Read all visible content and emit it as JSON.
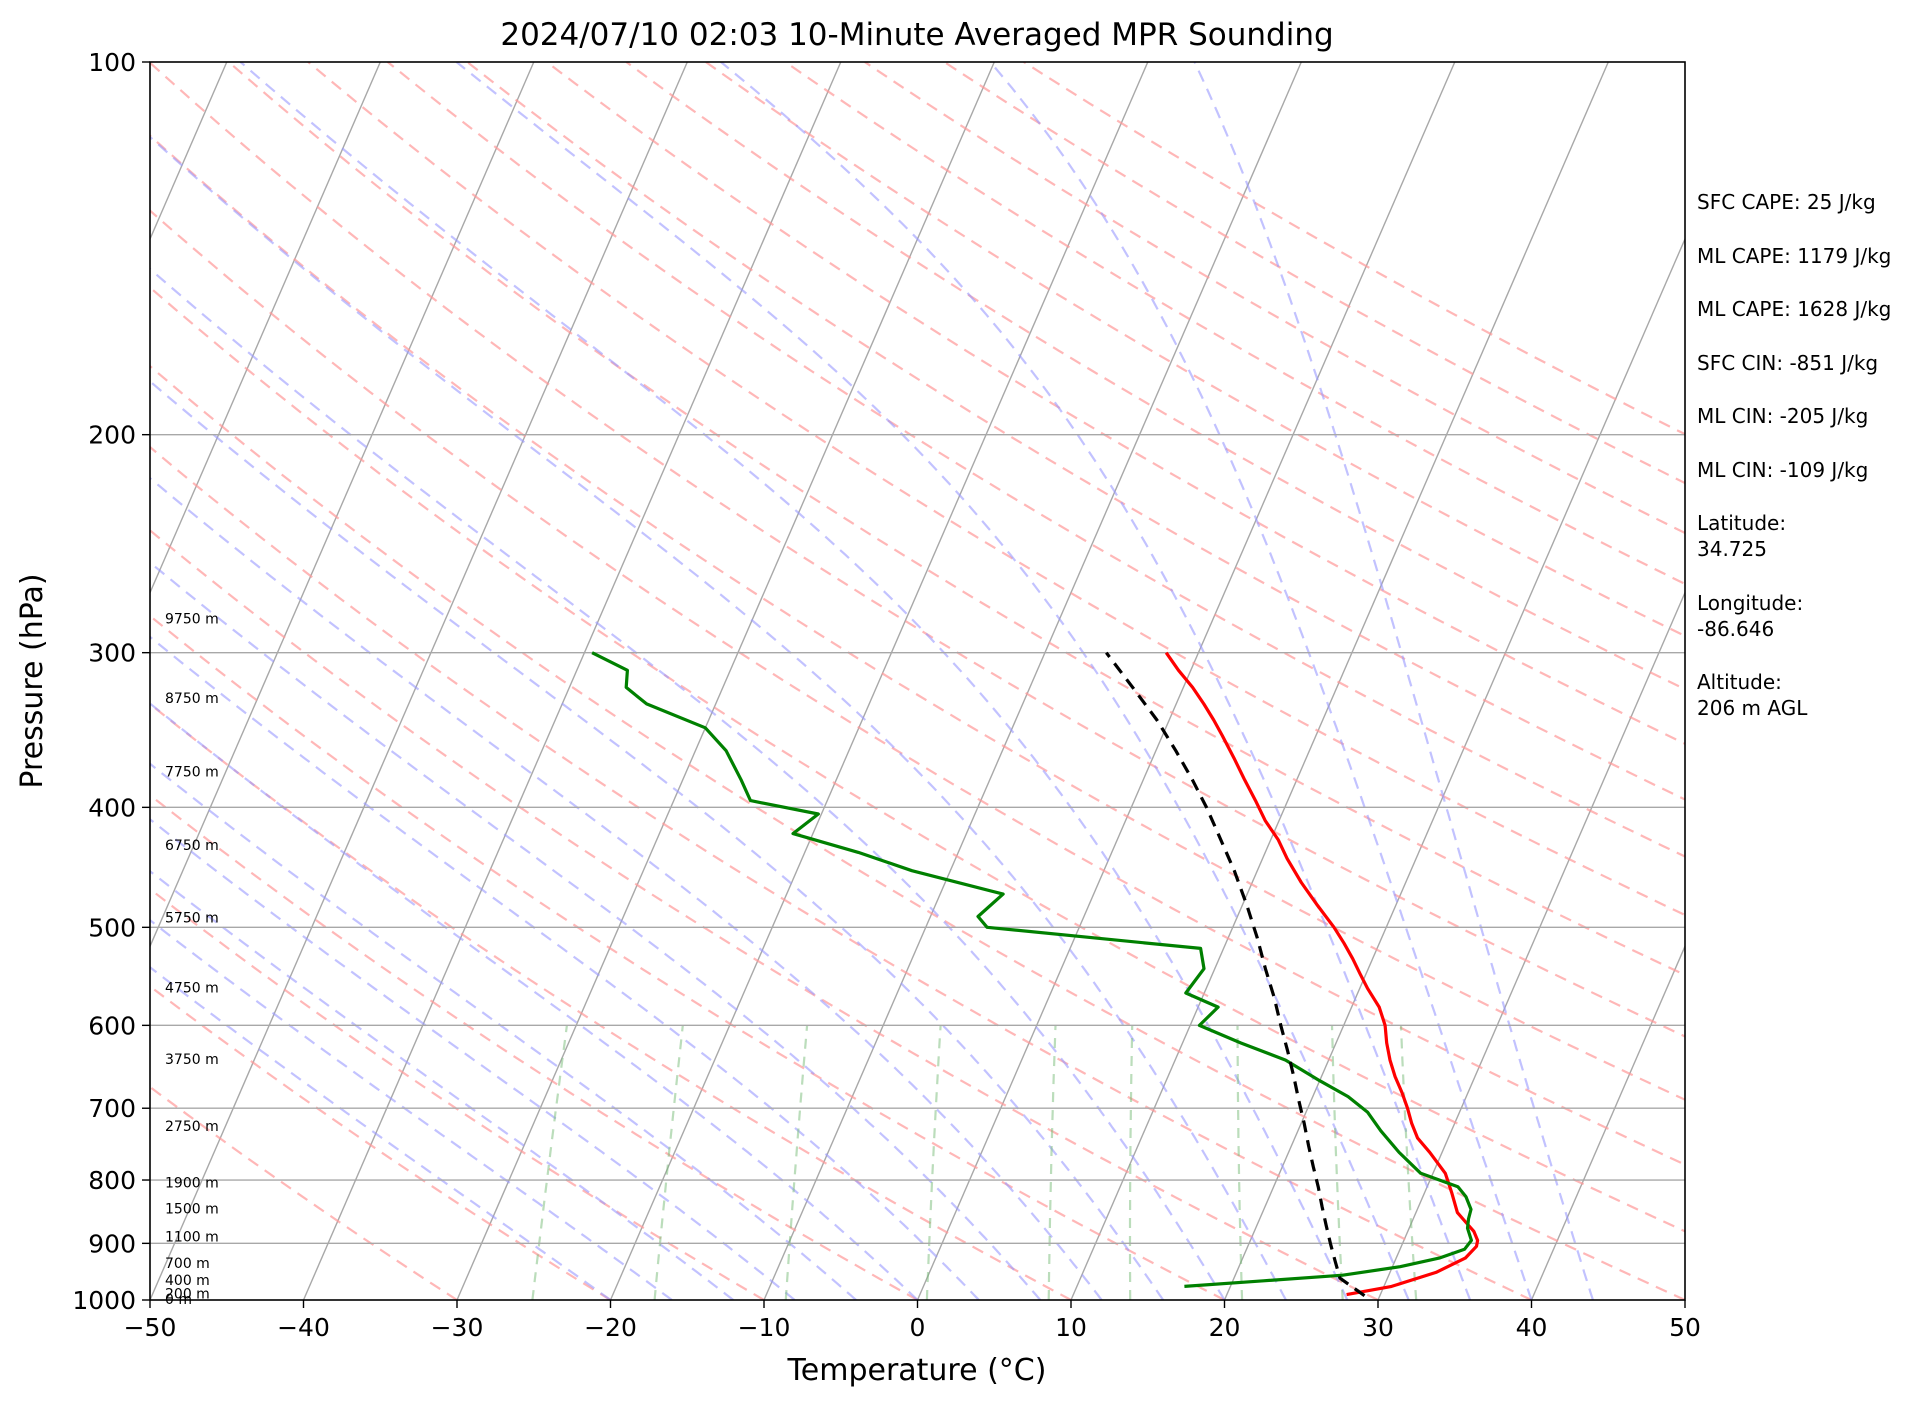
{
  "chart_data": {
    "type": "line",
    "subtype": "skew-t log-p",
    "title": "2024/07/10 02:03 10-Minute Averaged MPR Sounding",
    "xlabel": "Temperature (°C)",
    "ylabel": "Pressure (hPa)",
    "xlim": [
      -50,
      50
    ],
    "ylim": [
      1000,
      100
    ],
    "y_scale": "log",
    "x_ticks": [
      "−50",
      "−40",
      "−30",
      "−20",
      "−10",
      "0",
      "10",
      "20",
      "30",
      "40",
      "50"
    ],
    "y_ticks": [
      "100",
      "200",
      "300",
      "400",
      "500",
      "600",
      "700",
      "800",
      "900",
      "1000"
    ],
    "grid": "horizontal isobars at labeled pressures",
    "height_labels": [
      {
        "p": 1000,
        "text": "0 m"
      },
      {
        "p": 990,
        "text": "200 m"
      },
      {
        "p": 965,
        "text": "400 m"
      },
      {
        "p": 935,
        "text": "700 m"
      },
      {
        "p": 890,
        "text": "1100 m"
      },
      {
        "p": 845,
        "text": "1500 m"
      },
      {
        "p": 805,
        "text": "1900 m"
      },
      {
        "p": 725,
        "text": "2750 m"
      },
      {
        "p": 640,
        "text": "3750 m"
      },
      {
        "p": 560,
        "text": "4750 m"
      },
      {
        "p": 492,
        "text": "5750 m"
      },
      {
        "p": 430,
        "text": "6750 m"
      },
      {
        "p": 375,
        "text": "7750 m"
      },
      {
        "p": 327,
        "text": "8750 m"
      },
      {
        "p": 282,
        "text": "9750 m"
      }
    ],
    "series": [
      {
        "color": "#ff0000",
        "p": [
          990,
          975,
          950,
          925,
          905,
          895,
          880,
          865,
          850,
          820,
          790,
          760,
          740,
          720,
          700,
          680,
          660,
          640,
          620,
          600,
          580,
          560,
          545,
          530,
          515,
          500,
          480,
          460,
          440,
          425,
          410,
          395,
          380,
          365,
          350,
          340,
          330,
          320,
          310,
          300
        ],
        "values": [
          27.8,
          30.5,
          33.0,
          34.5,
          34.9,
          34.8,
          34.3,
          33.5,
          32.7,
          31.8,
          30.8,
          29.2,
          28.0,
          27.2,
          26.5,
          25.7,
          24.8,
          24.0,
          23.3,
          22.7,
          21.8,
          20.5,
          19.6,
          18.7,
          17.7,
          16.6,
          14.9,
          13.2,
          11.6,
          10.5,
          9.1,
          7.9,
          6.6,
          5.3,
          3.9,
          2.9,
          1.8,
          0.6,
          -0.8,
          -2.1
        ]
      },
      {
        "color": "#008000",
        "p": [
          975,
          965,
          955,
          940,
          925,
          910,
          895,
          875,
          860,
          845,
          825,
          810,
          790,
          760,
          730,
          705,
          685,
          665,
          640,
          620,
          600,
          580,
          565,
          540,
          520,
          500,
          490,
          470,
          450,
          435,
          420,
          405,
          395,
          380,
          360,
          345,
          330,
          320,
          310,
          300
        ],
        "values": [
          17.0,
          22.0,
          27.0,
          30.5,
          32.8,
          34.2,
          34.4,
          33.8,
          33.6,
          33.5,
          32.8,
          32.0,
          29.2,
          27.2,
          25.4,
          24.0,
          22.3,
          20.0,
          17.2,
          13.8,
          10.6,
          11.3,
          8.8,
          9.3,
          8.5,
          -6.0,
          -6.9,
          -5.9,
          -12.5,
          -16.5,
          -21.3,
          -20.2,
          -25.0,
          -26.2,
          -28.0,
          -30.0,
          -34.5,
          -36.3,
          -36.7,
          -39.5
        ]
      },
      {
        "color": "#000000",
        "dashed": true,
        "p": [
          992,
          960,
          930,
          900,
          870,
          840,
          810,
          780,
          750,
          720,
          690,
          660,
          630,
          600,
          570,
          540,
          510,
          480,
          450,
          420,
          400,
          380,
          360,
          340,
          320,
          300
        ],
        "values": [
          29.0,
          26.9,
          26.1,
          25.3,
          24.5,
          23.7,
          22.9,
          22.0,
          21.1,
          20.2,
          19.2,
          18.2,
          17.1,
          15.9,
          14.7,
          13.3,
          11.9,
          10.3,
          8.5,
          6.4,
          4.9,
          3.2,
          1.3,
          -0.8,
          -3.3,
          -6.0
        ]
      }
    ]
  },
  "stats": {
    "sfc_cape": "SFC CAPE: 25 J/kg",
    "ml_cape_1": "ML CAPE: 1179 J/kg",
    "ml_cape_2": "ML CAPE: 1628 J/kg",
    "sfc_cin": "SFC CIN: -851 J/kg",
    "ml_cin_1": "ML CIN: -205 J/kg",
    "ml_cin_2": "ML CIN: -109 J/kg",
    "latitude_label": "Latitude:",
    "latitude_value": "34.725",
    "longitude_label": "Longitude:",
    "longitude_value": "-86.646",
    "altitude_label": "Altitude:",
    "altitude_value": "206 m AGL"
  }
}
